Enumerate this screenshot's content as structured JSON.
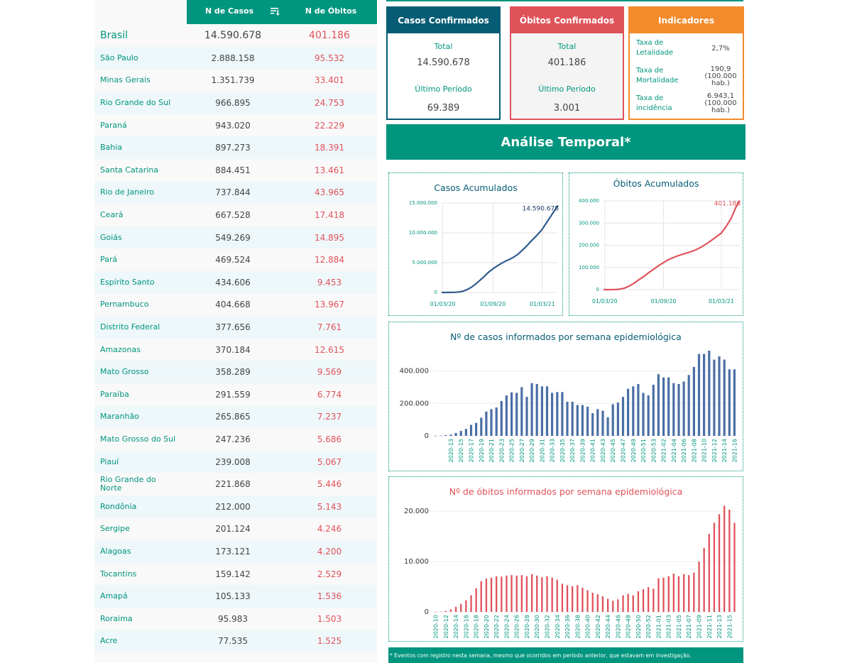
{
  "table": {
    "header": {
      "casos": "N de Casos",
      "obitos": "N de Óbitos",
      "sort_icon": "sort-icon"
    },
    "brasil": {
      "name": "Brasil",
      "casos": "14.590.678",
      "obitos": "401.186"
    },
    "rows": [
      {
        "name": "São Paulo",
        "casos": "2.888.158",
        "obitos": "95.532"
      },
      {
        "name": "Minas Gerais",
        "casos": "1.351.739",
        "obitos": "33.401"
      },
      {
        "name": "Rio Grande do Sul",
        "casos": "966.895",
        "obitos": "24.753"
      },
      {
        "name": "Paraná",
        "casos": "943.020",
        "obitos": "22.229"
      },
      {
        "name": "Bahia",
        "casos": "897.273",
        "obitos": "18.391"
      },
      {
        "name": "Santa Catarina",
        "casos": "884.451",
        "obitos": "13.461"
      },
      {
        "name": "Rio de Janeiro",
        "casos": "737.844",
        "obitos": "43.965"
      },
      {
        "name": "Ceará",
        "casos": "667.528",
        "obitos": "17.418"
      },
      {
        "name": "Goiás",
        "casos": "549.269",
        "obitos": "14.895"
      },
      {
        "name": "Pará",
        "casos": "469.524",
        "obitos": "12.884"
      },
      {
        "name": "Espírito Santo",
        "casos": "434.606",
        "obitos": "9.453"
      },
      {
        "name": "Pernambuco",
        "casos": "404.668",
        "obitos": "13.967"
      },
      {
        "name": "Distrito Federal",
        "casos": "377.656",
        "obitos": "7.761"
      },
      {
        "name": "Amazonas",
        "casos": "370.184",
        "obitos": "12.615"
      },
      {
        "name": "Mato Grosso",
        "casos": "358.289",
        "obitos": "9.569"
      },
      {
        "name": "Paraíba",
        "casos": "291.559",
        "obitos": "6.774"
      },
      {
        "name": "Maranhão",
        "casos": "265.865",
        "obitos": "7.237"
      },
      {
        "name": "Mato Grosso do Sul",
        "casos": "247.236",
        "obitos": "5.686"
      },
      {
        "name": "Piauí",
        "casos": "239.008",
        "obitos": "5.067"
      },
      {
        "name": "Rio Grande do Norte",
        "casos": "221.868",
        "obitos": "5.446"
      },
      {
        "name": "Rondônia",
        "casos": "212.000",
        "obitos": "5.143"
      },
      {
        "name": "Sergipe",
        "casos": "201.124",
        "obitos": "4.246"
      },
      {
        "name": "Alagoas",
        "casos": "173.121",
        "obitos": "4.200"
      },
      {
        "name": "Tocantins",
        "casos": "159.142",
        "obitos": "2.529"
      },
      {
        "name": "Amapá",
        "casos": "105.133",
        "obitos": "1.536"
      },
      {
        "name": "Roraima",
        "casos": "95.983",
        "obitos": "1.503"
      },
      {
        "name": "Acre",
        "casos": "77.535",
        "obitos": "1.525"
      }
    ]
  },
  "cards": {
    "casos": {
      "title": "Casos Confirmados",
      "total_label": "Total",
      "total": "14.590.678",
      "periodo_label": "Último Período",
      "periodo": "69.389"
    },
    "obitos": {
      "title": "Óbitos Confirmados",
      "total_label": "Total",
      "total": "401.186",
      "periodo_label": "Último Período",
      "periodo": "3.001"
    },
    "indicadores": {
      "title": "Indicadores",
      "items": [
        {
          "name": "Taxa de Letalidade",
          "value": "2,7%"
        },
        {
          "name": "Taxa de Mortalidade",
          "value": "190,9 (100.000 hab.)"
        },
        {
          "name": "Taxa de incidência",
          "value": "6.943,1 (100.000 hab.)"
        }
      ]
    }
  },
  "section_title": "Análise Temporal*",
  "footnote": "* Eventos com registro nesta semana, mesmo que ocorridos em período anterior, que estavam em investigação.",
  "colors": {
    "primary": "#00957e",
    "casos": "#065c74",
    "obitos": "#e0525a",
    "indicadores": "#f38b2d",
    "casos_line": "#2f5b8c",
    "casos_bars": "#4a6fa5"
  },
  "chart_data": [
    {
      "type": "line",
      "title": "Casos Acumulados",
      "end_label": "14.590.678",
      "x_ticks": [
        "01/03/20",
        "01/09/20",
        "01/03/21"
      ],
      "y_ticks": [
        "0",
        "5.000.000",
        "10.000.000",
        "15.000.000"
      ],
      "ylim": [
        0,
        15000000
      ],
      "x": [
        "2020-02-26",
        "2020-03-15",
        "2020-04-01",
        "2020-04-15",
        "2020-05-01",
        "2020-05-15",
        "2020-06-01",
        "2020-06-15",
        "2020-07-01",
        "2020-07-15",
        "2020-08-01",
        "2020-08-15",
        "2020-09-01",
        "2020-09-15",
        "2020-10-01",
        "2020-10-15",
        "2020-11-01",
        "2020-11-15",
        "2020-12-01",
        "2020-12-15",
        "2021-01-01",
        "2021-01-15",
        "2021-02-01",
        "2021-02-15",
        "2021-03-01",
        "2021-03-15",
        "2021-04-01",
        "2021-04-15",
        "2021-04-28"
      ],
      "values": [
        0,
        200,
        6800,
        28000,
        92000,
        220000,
        530000,
        890000,
        1450000,
        2010000,
        2730000,
        3360000,
        3950000,
        4400000,
        4850000,
        5200000,
        5550000,
        5880000,
        6380000,
        6950000,
        7700000,
        8400000,
        9200000,
        9850000,
        10600000,
        11600000,
        12750000,
        13750000,
        14590678
      ],
      "grid": true
    },
    {
      "type": "line",
      "title": "Óbitos Acumulados",
      "end_label": "401.186",
      "x_ticks": [
        "01/03/20",
        "01/09/20",
        "01/03/21"
      ],
      "y_ticks": [
        "0",
        "100.000",
        "200.000",
        "300.000",
        "400.000"
      ],
      "ylim": [
        0,
        400000
      ],
      "x": [
        "2020-02-26",
        "2020-03-15",
        "2020-04-01",
        "2020-04-15",
        "2020-05-01",
        "2020-05-15",
        "2020-06-01",
        "2020-06-15",
        "2020-07-01",
        "2020-07-15",
        "2020-08-01",
        "2020-08-15",
        "2020-09-01",
        "2020-09-15",
        "2020-10-01",
        "2020-10-15",
        "2020-11-01",
        "2020-11-15",
        "2020-12-01",
        "2020-12-15",
        "2021-01-01",
        "2021-01-15",
        "2021-02-01",
        "2021-02-15",
        "2021-03-01",
        "2021-03-15",
        "2021-04-01",
        "2021-04-15",
        "2021-04-28"
      ],
      "values": [
        0,
        0,
        240,
        1700,
        6000,
        15000,
        29000,
        44000,
        59000,
        75000,
        92000,
        107000,
        122000,
        134000,
        144000,
        152000,
        160000,
        166000,
        173000,
        182000,
        195000,
        208000,
        225000,
        240000,
        255000,
        282000,
        322000,
        370000,
        401186
      ],
      "grid": true
    },
    {
      "type": "bar",
      "title": "Nº de casos informados por semana epidemiológica",
      "y_ticks": [
        "0",
        "200.000",
        "400.000"
      ],
      "ylim": [
        0,
        560000
      ],
      "x_ticks": [
        "2020-13",
        "2020-15",
        "2020-17",
        "2020-19",
        "2020-21",
        "2020-23",
        "2020-25",
        "2020-27",
        "2020-29",
        "2020-31",
        "2020-33",
        "2020-35",
        "2020-37",
        "2020-39",
        "2020-41",
        "2020-43",
        "2020-45",
        "2020-47",
        "2020-49",
        "2020-51",
        "2020-53",
        "2021-02",
        "2021-04",
        "2021-06",
        "2021-08",
        "2021-10",
        "2021-12",
        "2021-14",
        "2021-16"
      ],
      "categories": [
        "2020-10",
        "2020-11",
        "2020-12",
        "2020-13",
        "2020-14",
        "2020-15",
        "2020-16",
        "2020-17",
        "2020-18",
        "2020-19",
        "2020-20",
        "2020-21",
        "2020-22",
        "2020-23",
        "2020-24",
        "2020-25",
        "2020-26",
        "2020-27",
        "2020-28",
        "2020-29",
        "2020-30",
        "2020-31",
        "2020-32",
        "2020-33",
        "2020-34",
        "2020-35",
        "2020-36",
        "2020-37",
        "2020-38",
        "2020-39",
        "2020-40",
        "2020-41",
        "2020-42",
        "2020-43",
        "2020-44",
        "2020-45",
        "2020-46",
        "2020-47",
        "2020-48",
        "2020-49",
        "2020-50",
        "2020-51",
        "2020-52",
        "2020-53",
        "2021-01",
        "2021-02",
        "2021-03",
        "2021-04",
        "2021-05",
        "2021-06",
        "2021-07",
        "2021-08",
        "2021-09",
        "2021-10",
        "2021-11",
        "2021-12",
        "2021-13",
        "2021-14",
        "2021-15",
        "2021-16"
      ],
      "values": [
        150,
        1500,
        5000,
        8000,
        18000,
        30000,
        43000,
        68000,
        80000,
        112000,
        150000,
        165000,
        175000,
        215000,
        250000,
        268000,
        265000,
        300000,
        240000,
        325000,
        320000,
        305000,
        305000,
        265000,
        270000,
        270000,
        210000,
        210000,
        190000,
        190000,
        180000,
        140000,
        165000,
        155000,
        115000,
        195000,
        205000,
        240000,
        290000,
        305000,
        320000,
        265000,
        250000,
        315000,
        380000,
        360000,
        360000,
        325000,
        320000,
        335000,
        375000,
        425000,
        505000,
        505000,
        525000,
        470000,
        490000,
        470000,
        410000,
        410000
      ],
      "grid": true
    },
    {
      "type": "bar",
      "title": "Nº de óbitos informados por semana epidemiológica",
      "y_ticks": [
        "0",
        "10.000",
        "20.000"
      ],
      "ylim": [
        0,
        22000
      ],
      "x_ticks": [
        "2020-10",
        "2020-12",
        "2020-14",
        "2020-16",
        "2020-18",
        "2020-20",
        "2020-22",
        "2020-24",
        "2020-26",
        "2020-28",
        "2020-30",
        "2020-32",
        "2020-34",
        "2020-36",
        "2020-38",
        "2020-40",
        "2020-42",
        "2020-44",
        "2020-46",
        "2020-48",
        "2020-50",
        "2020-52",
        "2021-01",
        "2021-03",
        "2021-05",
        "2021-07",
        "2021-09",
        "2021-11",
        "2021-13",
        "2021-15"
      ],
      "categories": [
        "2020-10",
        "2020-11",
        "2020-12",
        "2020-13",
        "2020-14",
        "2020-15",
        "2020-16",
        "2020-17",
        "2020-18",
        "2020-19",
        "2020-20",
        "2020-21",
        "2020-22",
        "2020-23",
        "2020-24",
        "2020-25",
        "2020-26",
        "2020-27",
        "2020-28",
        "2020-29",
        "2020-30",
        "2020-31",
        "2020-32",
        "2020-33",
        "2020-34",
        "2020-35",
        "2020-36",
        "2020-37",
        "2020-38",
        "2020-39",
        "2020-40",
        "2020-41",
        "2020-42",
        "2020-43",
        "2020-44",
        "2020-45",
        "2020-46",
        "2020-47",
        "2020-48",
        "2020-49",
        "2020-50",
        "2020-51",
        "2020-52",
        "2020-53",
        "2021-01",
        "2021-02",
        "2021-03",
        "2021-04",
        "2021-05",
        "2021-06",
        "2021-07",
        "2021-08",
        "2021-09",
        "2021-10",
        "2021-11",
        "2021-12",
        "2021-13",
        "2021-14",
        "2021-15",
        "2021-16"
      ],
      "values": [
        10,
        50,
        200,
        500,
        1000,
        1600,
        2300,
        3300,
        4700,
        6100,
        6600,
        6800,
        7100,
        7000,
        7200,
        7300,
        7200,
        7300,
        7100,
        7500,
        7200,
        6900,
        7100,
        6800,
        6400,
        5600,
        5300,
        5100,
        5300,
        4800,
        4300,
        3800,
        3500,
        3100,
        2600,
        2200,
        2500,
        3300,
        3600,
        3300,
        4100,
        4500,
        4900,
        4600,
        6700,
        6800,
        7100,
        7600,
        7100,
        7500,
        7300,
        7800,
        10000,
        12700,
        15500,
        17700,
        19400,
        21100,
        20300,
        17700
      ],
      "grid": true
    }
  ]
}
